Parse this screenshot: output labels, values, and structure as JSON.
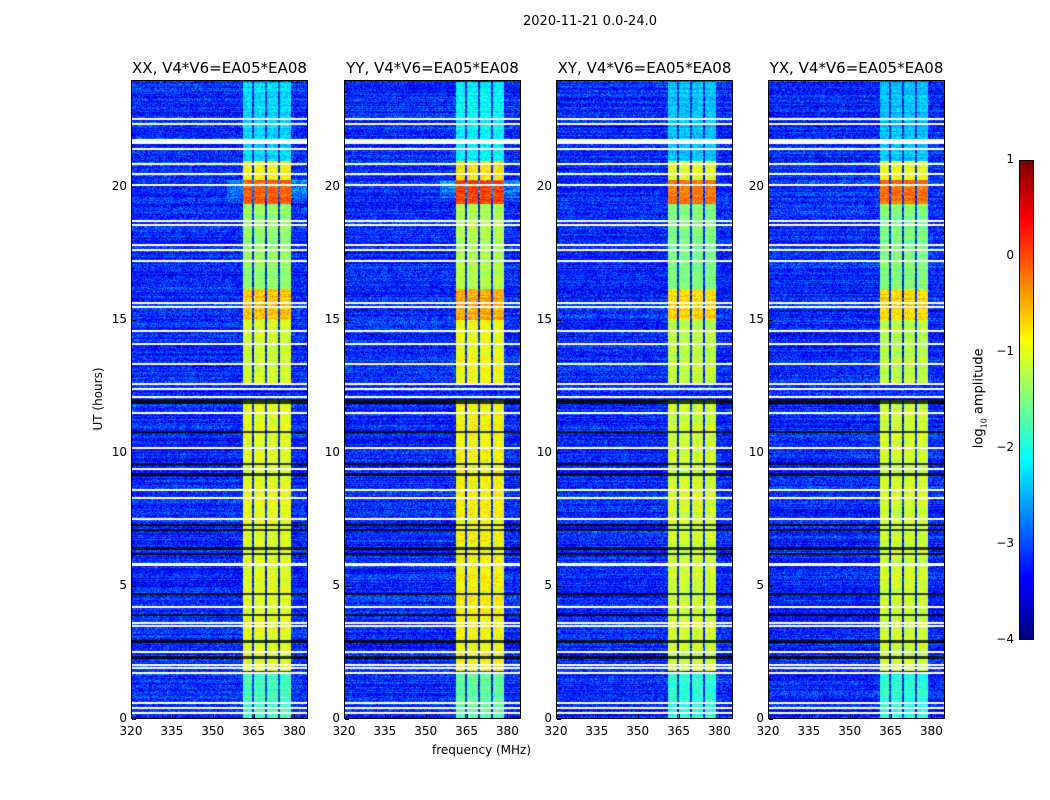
{
  "chart_data": {
    "type": "heatmap",
    "title": "2020-11-21 0.0-24.0",
    "xlabel": "frequency (MHz)",
    "ylabel": "UT (hours)",
    "xlim": [
      320,
      385
    ],
    "ylim": [
      0,
      24
    ],
    "xticks": [
      320,
      335,
      350,
      365,
      380
    ],
    "yticks": [
      0,
      5,
      10,
      15,
      20
    ],
    "panels": [
      {
        "title": "XX, V4*V6=EA05*EA08",
        "band_boost": 0.0
      },
      {
        "title": "YY, V4*V6=EA05*EA08",
        "band_boost": 0.15
      },
      {
        "title": "XY, V4*V6=EA05*EA08",
        "band_boost": -0.1
      },
      {
        "title": "YX, V4*V6=EA05*EA08",
        "band_boost": -0.1
      }
    ],
    "colorbar": {
      "label": "log10 amplitude",
      "label_main": "log",
      "label_sub": "10",
      "label_rest": " amplitude",
      "range": [
        -4,
        1
      ],
      "ticks": [
        "1",
        "0",
        "−1",
        "−2",
        "−3",
        "−4"
      ],
      "colormap": "jet"
    },
    "background_level": -3.2,
    "rfi_channels_mhz": [
      [
        361,
        364.5
      ],
      [
        365.2,
        369.3
      ],
      [
        370,
        374
      ],
      [
        374.7,
        378.8
      ]
    ],
    "rfi_levels_by_hour": [
      {
        "hours": [
          1.8,
          12.0
        ],
        "level": -1.0
      },
      {
        "hours": [
          12.6,
          15.0
        ],
        "level": -1.1
      },
      {
        "hours": [
          15.0,
          16.2
        ],
        "level": -0.6
      },
      {
        "hours": [
          16.2,
          19.4
        ],
        "level": -1.4
      },
      {
        "hours": [
          19.4,
          20.3
        ],
        "level": -0.1
      },
      {
        "hours": [
          20.3,
          21.0
        ],
        "level": -0.9
      },
      {
        "hours": [
          0,
          1.7
        ],
        "level": -1.8
      },
      {
        "hours": [
          21.0,
          24.0
        ],
        "level": -2.3
      }
    ],
    "flagged_hours": [
      0.2,
      0.4,
      0.6,
      1.7,
      1.9,
      2.0,
      2.5,
      3.5,
      3.6,
      4.2,
      5.8,
      7.5,
      8.3,
      8.6,
      9.4,
      10.2,
      11.5,
      12.1,
      12.4,
      12.6,
      13.35,
      14.1,
      14.6,
      15.5,
      15.67,
      17.25,
      17.66,
      17.85,
      18.6,
      18.75,
      20.1,
      20.5,
      20.9,
      21.45,
      21.7,
      21.8,
      22.4,
      22.6
    ],
    "dark_hours": [
      2.3,
      2.9,
      3.9,
      4.7,
      6.2,
      6.4,
      7.1,
      7.3,
      9.2,
      9.6,
      10.8,
      11.9,
      12.0
    ]
  }
}
